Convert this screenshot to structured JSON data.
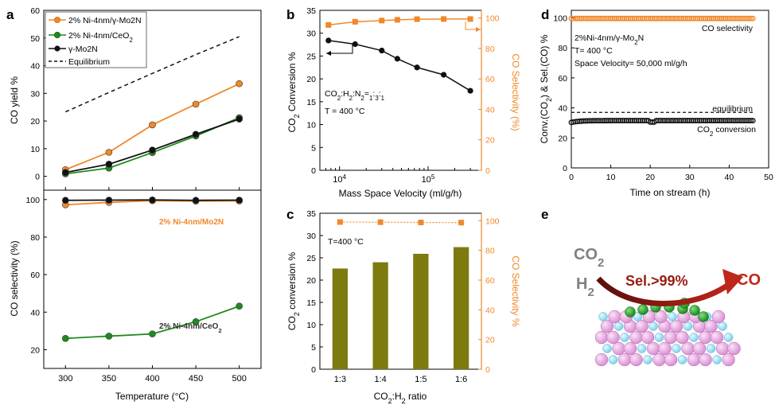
{
  "colors": {
    "orange": "#f0882a",
    "green": "#1f8a1f",
    "black": "#111111",
    "olive": "#7d7a10",
    "ptOrange": "#f08a2c",
    "crimson": "#9a1b12"
  },
  "chart_data": [
    {
      "panel": "a",
      "type": "line",
      "title": "",
      "xlabel": "Temperature (°C)",
      "ylabel": "CO yield %",
      "x": [
        300,
        350,
        400,
        450,
        500
      ],
      "xticks": [
        "300",
        "350",
        "400",
        "450",
        "500"
      ],
      "ylim": [
        -5,
        60
      ],
      "yticks": [
        "0",
        "10",
        "20",
        "30",
        "40",
        "50",
        "60"
      ],
      "legend_position": "top-left",
      "series": [
        {
          "name": "2% Ni-4nm/γ-Mo2N",
          "color": "orange",
          "values": [
            2.4,
            8.7,
            18.6,
            26.1,
            33.5
          ]
        },
        {
          "name": "2% Ni-4nm/CeO2",
          "color": "green",
          "values": [
            0.9,
            3.0,
            8.6,
            14.6,
            21.2
          ]
        },
        {
          "name": "γ-Mo2N",
          "color": "black",
          "values": [
            1.4,
            4.4,
            9.5,
            15.2,
            20.7
          ]
        },
        {
          "name": "Equilibrium",
          "style": "dashed",
          "values": [
            23.3,
            30.3,
            37.2,
            44.0,
            50.5
          ]
        }
      ]
    },
    {
      "panel": "a-lower",
      "type": "line",
      "xlabel": "Temperature (°C)",
      "ylabel": "CO selectivity (%)",
      "x": [
        300,
        350,
        400,
        450,
        500
      ],
      "ylim": [
        10,
        105
      ],
      "yticks": [
        "20",
        "40",
        "60",
        "80",
        "100"
      ],
      "annotations": [
        "2% Ni-4nm/Mo2N",
        "2% Ni-4nm/CeO2"
      ],
      "series": [
        {
          "name": "2% Ni-4nm/γ-Mo2N",
          "color": "orange",
          "values": [
            97.2,
            98.5,
            99.4,
            99.2,
            99.3
          ]
        },
        {
          "name": "2% Ni-4nm/CeO2",
          "color": "green",
          "values": [
            26.0,
            27.2,
            28.4,
            34.9,
            43.2
          ]
        },
        {
          "name": "γ-Mo2N",
          "color": "black",
          "values": [
            99.6,
            99.7,
            99.8,
            99.6,
            99.7
          ]
        }
      ]
    },
    {
      "panel": "b",
      "type": "line",
      "xscale": "log",
      "xlabel": "Mass Space Velocity (ml/g/h)",
      "ylabel_left": "CO2 Conversion %",
      "ylabel_right": "CO Selectivity (%)",
      "xlim": [
        6000,
        400000
      ],
      "xticks": [
        "10^4",
        "10^5"
      ],
      "ylim_left": [
        0,
        35
      ],
      "yticks_left": [
        "0",
        "5",
        "10",
        "15",
        "20",
        "25",
        "30",
        "35"
      ],
      "ylim_right": [
        0,
        105
      ],
      "yticks_right": [
        "0",
        "20",
        "40",
        "60",
        "80",
        "100"
      ],
      "annotation": [
        "CO2:H2:N2=1:3:1",
        "T = 400 °C"
      ],
      "series": [
        {
          "name": "CO2 Conversion",
          "axis": "left",
          "color": "black",
          "x": [
            7500,
            15000,
            30000,
            45000,
            75000,
            150000,
            300000
          ],
          "values": [
            28.4,
            27.6,
            26.2,
            24.4,
            22.5,
            20.9,
            17.4
          ]
        },
        {
          "name": "CO Selectivity",
          "axis": "right",
          "color": "orange",
          "x": [
            7500,
            15000,
            30000,
            45000,
            75000,
            150000,
            300000
          ],
          "values": [
            95.4,
            97.5,
            98.3,
            98.8,
            99.2,
            99.3,
            99.3
          ]
        }
      ]
    },
    {
      "panel": "c",
      "type": "bar",
      "xlabel": "CO2:H2 ratio",
      "ylabel_left": "CO2 conversion %",
      "ylabel_right": "CO Selectivity %",
      "categories": [
        "1:3",
        "1:4",
        "1:5",
        "1:6"
      ],
      "ylim_left": [
        0,
        35
      ],
      "yticks_left": [
        "0",
        "5",
        "10",
        "15",
        "20",
        "25",
        "30",
        "35"
      ],
      "ylim_right": [
        0,
        105
      ],
      "yticks_right": [
        "0",
        "20",
        "40",
        "60",
        "80",
        "100"
      ],
      "annotation": "T=400 °C",
      "series": [
        {
          "name": "CO2 conversion",
          "axis": "left",
          "color": "olive",
          "values": [
            22.6,
            24.0,
            25.9,
            27.4
          ]
        },
        {
          "name": "CO Selectivity",
          "axis": "right",
          "color": "orange",
          "style": "dotted",
          "values": [
            99.1,
            99.0,
            98.8,
            98.7
          ]
        }
      ]
    },
    {
      "panel": "d",
      "type": "line",
      "xlabel": "Time on stream (h)",
      "ylabel": "Conv.(CO2) & Sel.(CO) %",
      "xlim": [
        0,
        50
      ],
      "xticks": [
        "0",
        "10",
        "20",
        "30",
        "40",
        "50"
      ],
      "ylim": [
        0,
        105
      ],
      "yticks": [
        "0",
        "20",
        "40",
        "60",
        "80",
        "100"
      ],
      "annotation": [
        "2%Ni-4nm/γ-Mo2N",
        "T= 400 °C",
        "Space Velocity= 50,000 ml/g/h"
      ],
      "labels": {
        "selectivity": "CO selectivity",
        "equilibrium": "equilibrium",
        "conversion": "CO2 conversion"
      },
      "series": [
        {
          "name": "CO selectivity",
          "color": "orange",
          "x_range": [
            0,
            46
          ],
          "value": 99.6
        },
        {
          "name": "equilibrium",
          "style": "dashed",
          "x_range": [
            0,
            46
          ],
          "value": 37.0
        },
        {
          "name": "CO2 conversion",
          "color": "black",
          "x_range": [
            0,
            46
          ],
          "value": 31.5
        }
      ]
    }
  ],
  "scheme": {
    "panel": "e",
    "co2": "CO2",
    "h2": "H2",
    "sel": "Sel.>99%",
    "co": "CO"
  }
}
